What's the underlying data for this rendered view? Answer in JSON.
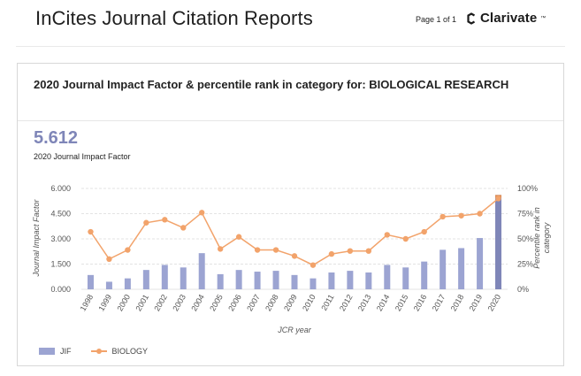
{
  "header": {
    "title": "InCites Journal Citation Reports",
    "page_counter": "Page 1 of 1",
    "brand": "Clarivate",
    "brand_tm": "™"
  },
  "card": {
    "title": "2020 Journal Impact Factor & percentile rank in category for: BIOLOGICAL RESEARCH",
    "jif_value": "5.612",
    "jif_caption": "2020 Journal Impact Factor"
  },
  "colors": {
    "jif_bar": "#9ca4d2",
    "jif_bar_highlight": "#7f86b8",
    "biology_line": "#f2a36b",
    "highlight_cap": "#e08f56"
  },
  "chart_data": {
    "type": "bar",
    "title": "",
    "xlabel": "JCR year",
    "ylabel": "Journal Impact Factor",
    "y2label": "Percentile rank in category",
    "ylim": [
      0,
      6
    ],
    "y2lim": [
      0,
      100
    ],
    "yticks": [
      "6.000",
      "4.500",
      "3.000",
      "1.500",
      "0.000"
    ],
    "y2ticks": [
      "100%",
      "75%",
      "50%",
      "25%",
      "0%"
    ],
    "categories": [
      "1998",
      "1999",
      "2000",
      "2001",
      "2002",
      "2003",
      "2004",
      "2005",
      "2006",
      "2007",
      "2008",
      "2009",
      "2010",
      "2011",
      "2012",
      "2013",
      "2014",
      "2015",
      "2016",
      "2017",
      "2018",
      "2019",
      "2020"
    ],
    "series": [
      {
        "name": "JIF",
        "type": "bar",
        "axis": "left",
        "values": [
          0.85,
          0.45,
          0.65,
          1.15,
          1.45,
          1.3,
          2.15,
          0.9,
          1.15,
          1.05,
          1.1,
          0.85,
          0.65,
          1.0,
          1.1,
          1.0,
          1.45,
          1.3,
          1.65,
          2.35,
          2.45,
          3.05,
          5.612
        ]
      },
      {
        "name": "BIOLOGY",
        "type": "line",
        "axis": "right",
        "values": [
          57,
          30,
          39,
          66,
          69,
          61,
          76,
          40,
          52,
          39,
          39,
          33,
          24,
          35,
          38,
          38,
          54,
          50,
          57,
          72,
          73,
          75,
          90
        ]
      }
    ],
    "grid": true,
    "legend_position": "bottom-left"
  }
}
